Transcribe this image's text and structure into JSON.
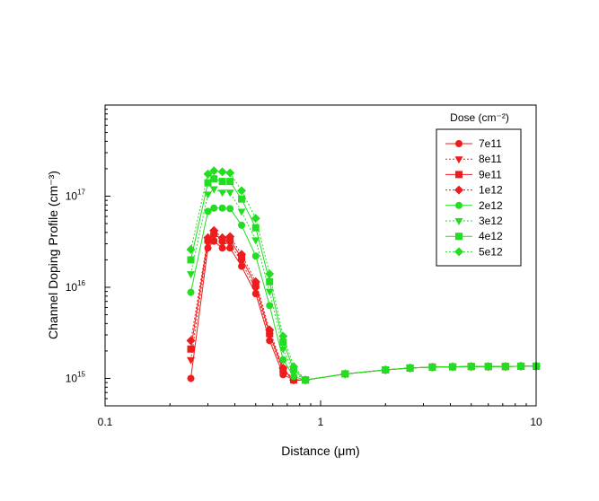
{
  "chart_data": {
    "type": "line",
    "title": "",
    "xlabel": "Distance (μm)",
    "ylabel": "Channel Doping Profile (cm⁻³)",
    "x_scale": "log",
    "y_scale": "log",
    "xlim": [
      0.1,
      10
    ],
    "ylim": [
      500000000000000.0,
      1e+18
    ],
    "grid": false,
    "legend_placement": "top-right",
    "legend_title": "Dose (cm⁻²)",
    "x_ticks": [
      {
        "value": 0.1,
        "label": "0.1"
      },
      {
        "value": 1,
        "label": "1"
      },
      {
        "value": 10,
        "label": "10"
      }
    ],
    "y_ticks": [
      {
        "value": 1000000000000000.0,
        "base": "10",
        "exp": "15"
      },
      {
        "value": 1e+16,
        "base": "10",
        "exp": "16"
      },
      {
        "value": 1e+17,
        "base": "10",
        "exp": "17"
      }
    ],
    "x": [
      0.25,
      0.3,
      0.32,
      0.35,
      0.38,
      0.43,
      0.5,
      0.58,
      0.67,
      0.75,
      0.85,
      1.3,
      2.0,
      2.6,
      3.3,
      4.1,
      5.0,
      6.0,
      7.2,
      8.5,
      10
    ],
    "series": [
      {
        "name": "7e11",
        "color": "#ee1c1c",
        "marker": "circle",
        "dash": "solid",
        "values": [
          1000000000000000.0,
          2.7e+16,
          3.2e+16,
          2.7e+16,
          2.7e+16,
          1.7e+16,
          8500000000000000.0,
          2600000000000000.0,
          1100000000000000.0,
          960000000000000.0,
          960000000000000.0,
          1120000000000000.0,
          1240000000000000.0,
          1300000000000000.0,
          1330000000000000.0,
          1340000000000000.0,
          1350000000000000.0,
          1350000000000000.0,
          1350000000000000.0,
          1360000000000000.0,
          1360000000000000.0
        ]
      },
      {
        "name": "8e11",
        "color": "#ee1c1c",
        "marker": "triangle-down",
        "dash": "dot",
        "values": [
          1600000000000000.0,
          3e+16,
          3.6e+16,
          3e+16,
          3e+16,
          1.9e+16,
          9500000000000000.0,
          2900000000000000.0,
          1200000000000000.0,
          960000000000000.0,
          960000000000000.0,
          1120000000000000.0,
          1240000000000000.0,
          1300000000000000.0,
          1330000000000000.0,
          1340000000000000.0,
          1350000000000000.0,
          1350000000000000.0,
          1350000000000000.0,
          1360000000000000.0,
          1360000000000000.0
        ]
      },
      {
        "name": "9e11",
        "color": "#ee1c1c",
        "marker": "square",
        "dash": "solid",
        "values": [
          2100000000000000.0,
          3.3e+16,
          3.9e+16,
          3.3e+16,
          3.3e+16,
          2.1e+16,
          1.05e+16,
          3100000000000000.0,
          1250000000000000.0,
          960000000000000.0,
          960000000000000.0,
          1120000000000000.0,
          1240000000000000.0,
          1300000000000000.0,
          1330000000000000.0,
          1340000000000000.0,
          1350000000000000.0,
          1350000000000000.0,
          1350000000000000.0,
          1360000000000000.0,
          1360000000000000.0
        ]
      },
      {
        "name": "1e12",
        "color": "#ee1c1c",
        "marker": "diamond",
        "dash": "dot",
        "values": [
          2600000000000000.0,
          3.5e+16,
          4.2e+16,
          3.5e+16,
          3.6e+16,
          2.3e+16,
          1.15e+16,
          3400000000000000.0,
          1300000000000000.0,
          960000000000000.0,
          960000000000000.0,
          1120000000000000.0,
          1240000000000000.0,
          1300000000000000.0,
          1330000000000000.0,
          1340000000000000.0,
          1350000000000000.0,
          1350000000000000.0,
          1350000000000000.0,
          1360000000000000.0,
          1360000000000000.0
        ]
      },
      {
        "name": "2e12",
        "color": "#22dd22",
        "marker": "circle",
        "dash": "solid",
        "values": [
          8800000000000000.0,
          6.8e+16,
          7.4e+16,
          7.4e+16,
          7.3e+16,
          4.8e+16,
          2.2e+16,
          6300000000000000.0,
          1600000000000000.0,
          1050000000000000.0,
          960000000000000.0,
          1120000000000000.0,
          1240000000000000.0,
          1300000000000000.0,
          1330000000000000.0,
          1340000000000000.0,
          1350000000000000.0,
          1350000000000000.0,
          1350000000000000.0,
          1360000000000000.0,
          1360000000000000.0
        ]
      },
      {
        "name": "3e12",
        "color": "#22dd22",
        "marker": "triangle-down",
        "dash": "dot",
        "values": [
          1.4e+16,
          1.05e+17,
          1.2e+17,
          1.1e+17,
          1.1e+17,
          6.8e+16,
          3.3e+16,
          9000000000000000.0,
          2100000000000000.0,
          1150000000000000.0,
          960000000000000.0,
          1120000000000000.0,
          1240000000000000.0,
          1300000000000000.0,
          1330000000000000.0,
          1340000000000000.0,
          1350000000000000.0,
          1350000000000000.0,
          1350000000000000.0,
          1360000000000000.0,
          1360000000000000.0
        ]
      },
      {
        "name": "4e12",
        "color": "#22dd22",
        "marker": "square",
        "dash": "solid",
        "values": [
          2e+16,
          1.4e+17,
          1.55e+17,
          1.45e+17,
          1.45e+17,
          9.3e+16,
          4.5e+16,
          1.15e+16,
          2500000000000000.0,
          1250000000000000.0,
          960000000000000.0,
          1120000000000000.0,
          1240000000000000.0,
          1300000000000000.0,
          1330000000000000.0,
          1340000000000000.0,
          1350000000000000.0,
          1350000000000000.0,
          1350000000000000.0,
          1360000000000000.0,
          1360000000000000.0
        ]
      },
      {
        "name": "5e12",
        "color": "#22dd22",
        "marker": "diamond",
        "dash": "dot",
        "values": [
          2.6e+16,
          1.75e+17,
          1.9e+17,
          1.85e+17,
          1.8e+17,
          1.15e+17,
          5.7e+16,
          1.4e+16,
          2900000000000000.0,
          1350000000000000.0,
          960000000000000.0,
          1120000000000000.0,
          1240000000000000.0,
          1300000000000000.0,
          1330000000000000.0,
          1340000000000000.0,
          1350000000000000.0,
          1350000000000000.0,
          1350000000000000.0,
          1360000000000000.0,
          1360000000000000.0
        ]
      }
    ]
  }
}
